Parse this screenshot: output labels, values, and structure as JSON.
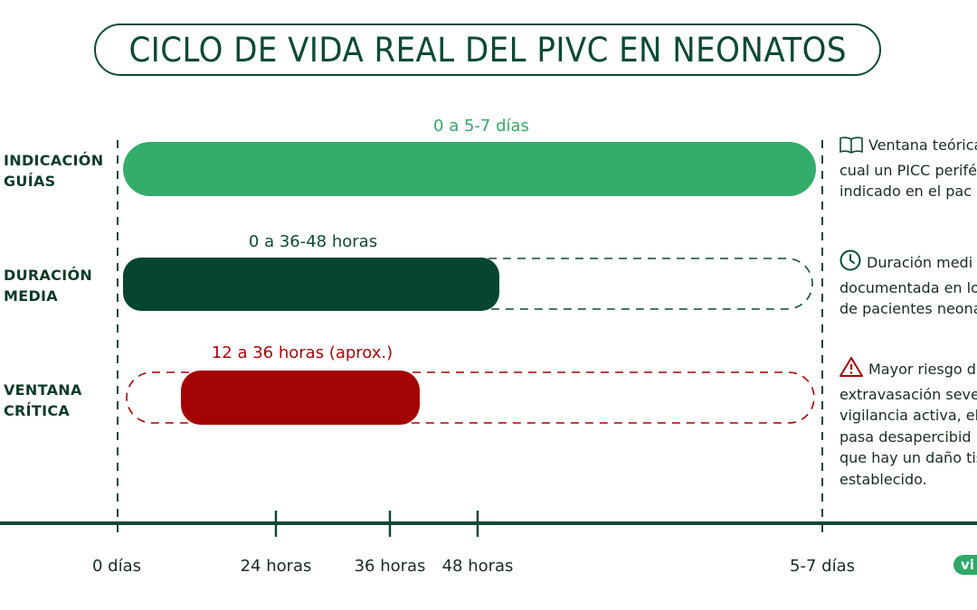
{
  "title": "CICLO DE VIDA REAL DEL PIVC EN NEONATOS",
  "rows": [
    {
      "label_line1": "INDICACIÓN",
      "label_line2": "GUÍAS",
      "caption": "0 a 5-7 días",
      "caption_color": "#35a866",
      "bar_color": "#33ad6b"
    },
    {
      "label_line1": "DURACIÓN",
      "label_line2": "MEDIA",
      "caption": "0 a 36-48 horas",
      "caption_color": "#0d4a36",
      "bar_color": "#074533"
    },
    {
      "label_line1": "VENTANA",
      "label_line2": "CRÍTICA",
      "caption": "12 a 36 horas (aprox.)",
      "caption_color": "#a30808",
      "bar_color": "#a40303"
    }
  ],
  "notes": [
    {
      "icon": "book-icon",
      "lines": [
        "Ventana teórica",
        "cual un PICC perifér",
        "indicado en el pac"
      ]
    },
    {
      "icon": "clock-icon",
      "lines": [
        "Duración medi",
        "documentada en lo",
        "de pacientes neona"
      ]
    },
    {
      "icon": "warning-icon",
      "lines": [
        "Mayor riesgo d",
        "extravasación sever",
        "vigilancia activa, el",
        "pasa desapercibid",
        "que hay un daño tis",
        "establecido."
      ]
    }
  ],
  "axis_ticks": [
    "0 días",
    "24 horas",
    "36 horas",
    "48 horas",
    "5-7 días"
  ],
  "logo_text": "vi",
  "colors": {
    "dark_green": "#0b4a34",
    "light_green": "#33ad6b",
    "red": "#a40303"
  }
}
